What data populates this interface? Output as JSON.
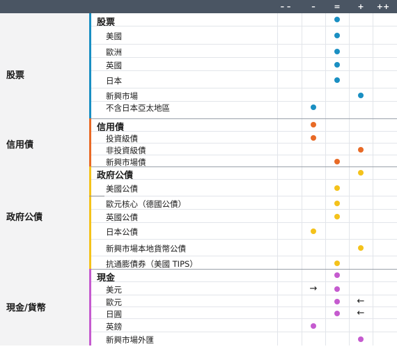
{
  "header": {
    "cols": [
      "– –",
      "–",
      "=",
      "+",
      "++"
    ]
  },
  "colors": {
    "equity": "#1a8fc2",
    "credit": "#e86a26",
    "govt": "#f4c21b",
    "cash": "#c55bcf"
  },
  "groups": [
    {
      "label": "股票",
      "color": "#1a8fc2",
      "rows": [
        {
          "label": "股票",
          "head": true,
          "mark": {
            "col": 2,
            "type": "dot"
          }
        },
        {
          "label": "美國",
          "mark": {
            "col": 2,
            "type": "dot"
          }
        },
        {
          "label": "歐洲",
          "mark": {
            "col": 2,
            "type": "dot"
          }
        },
        {
          "label": "英國",
          "mark": {
            "col": 2,
            "type": "dot"
          }
        },
        {
          "label": "日本",
          "mark": {
            "col": 2,
            "type": "dot"
          }
        },
        {
          "label": "新興市場",
          "mark": {
            "col": 3,
            "type": "dot"
          }
        },
        {
          "label": "不含日本亞太地區",
          "mark": {
            "col": 1,
            "type": "dot"
          }
        }
      ]
    },
    {
      "label": "信用債",
      "color": "#e86a26",
      "rows": [
        {
          "label": "信用債",
          "head": true,
          "mark": {
            "col": 1,
            "type": "dot"
          }
        },
        {
          "label": "投資級債",
          "mark": {
            "col": 1,
            "type": "dot"
          }
        },
        {
          "label": "非投資級債",
          "mark": {
            "col": 3,
            "type": "dot"
          }
        },
        {
          "label": "新興市場債",
          "mark": {
            "col": 2,
            "type": "dot"
          }
        }
      ]
    },
    {
      "label": "政府公債",
      "color": "#f4c21b",
      "rows": [
        {
          "label": "政府公債",
          "head": true,
          "mark": {
            "col": 3,
            "type": "dot"
          }
        },
        {
          "label": "美國公債",
          "mark": {
            "col": 2,
            "type": "dot"
          }
        },
        {
          "label": "歐元核心（德國公債）",
          "mark": {
            "col": 2,
            "type": "dot"
          }
        },
        {
          "label": "英國公債",
          "mark": {
            "col": 2,
            "type": "dot"
          }
        },
        {
          "label": "日本公債",
          "mark": {
            "col": 1,
            "type": "dot"
          }
        },
        {
          "label": "新興市場本地貨幣公債",
          "mark": {
            "col": 3,
            "type": "dot"
          }
        },
        {
          "label": "抗通膨債券（美國 TIPS）",
          "mark": {
            "col": 2,
            "type": "dot"
          }
        }
      ]
    },
    {
      "label": "現金/貨幣",
      "color": "#c55bcf",
      "rows": [
        {
          "label": "現金",
          "head": true,
          "mark": {
            "col": 2,
            "type": "dot"
          }
        },
        {
          "label": "美元",
          "mark": {
            "col": 2,
            "type": "dot"
          },
          "arrow": {
            "col": 1,
            "dir": "→"
          }
        },
        {
          "label": "歐元",
          "mark": {
            "col": 2,
            "type": "dot"
          },
          "arrow": {
            "col": 3,
            "dir": "←"
          }
        },
        {
          "label": "日圓",
          "mark": {
            "col": 2,
            "type": "dot"
          },
          "arrow": {
            "col": 3,
            "dir": "←"
          }
        },
        {
          "label": "英鎊",
          "mark": {
            "col": 1,
            "type": "dot"
          }
        },
        {
          "label": "新興市場外匯",
          "mark": {
            "col": 3,
            "type": "dot"
          }
        }
      ]
    }
  ]
}
